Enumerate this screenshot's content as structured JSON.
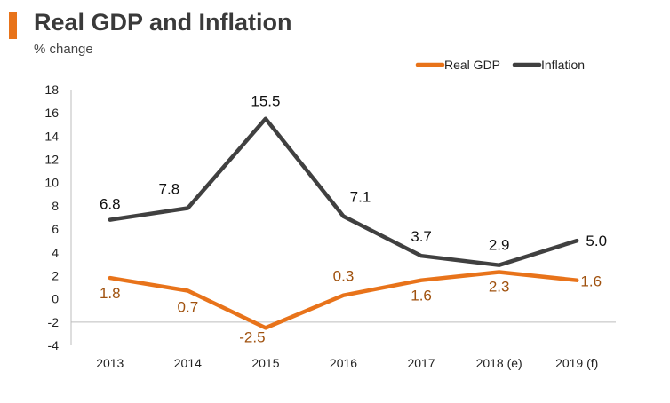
{
  "header": {
    "title": "Real GDP and Inflation",
    "subtitle": "% change"
  },
  "colors": {
    "accent": "#e8731a",
    "gdp": "#e8731a",
    "inflation": "#404040",
    "gdp_label": "#a0520f",
    "inflation_label": "#111111",
    "axis": "#bdbdbd"
  },
  "chart_data": {
    "type": "line",
    "title": "Real GDP and Inflation",
    "subtitle": "% change",
    "x": [
      "2013",
      "2014",
      "2015",
      "2016",
      "2017",
      "2018 (e)",
      "2019 (f)"
    ],
    "ylim": [
      -4,
      18
    ],
    "yticks": [
      18,
      16,
      14,
      12,
      10,
      8,
      6,
      4,
      2,
      0,
      -2,
      -4
    ],
    "grid": false,
    "legend_position": "top-right",
    "series": [
      {
        "name": "Real GDP",
        "values": [
          1.8,
          0.7,
          -2.5,
          0.3,
          1.6,
          2.3,
          1.6
        ],
        "labels": [
          "1.8",
          "0.7",
          "-2.5",
          "0.3",
          "1.6",
          "2.3",
          "1.6"
        ]
      },
      {
        "name": "Inflation",
        "values": [
          6.8,
          7.8,
          15.5,
          7.1,
          3.7,
          2.9,
          5.0
        ],
        "labels": [
          "6.8",
          "7.8",
          "15.5",
          "7.1",
          "3.7",
          "2.9",
          "5.0"
        ]
      }
    ]
  }
}
